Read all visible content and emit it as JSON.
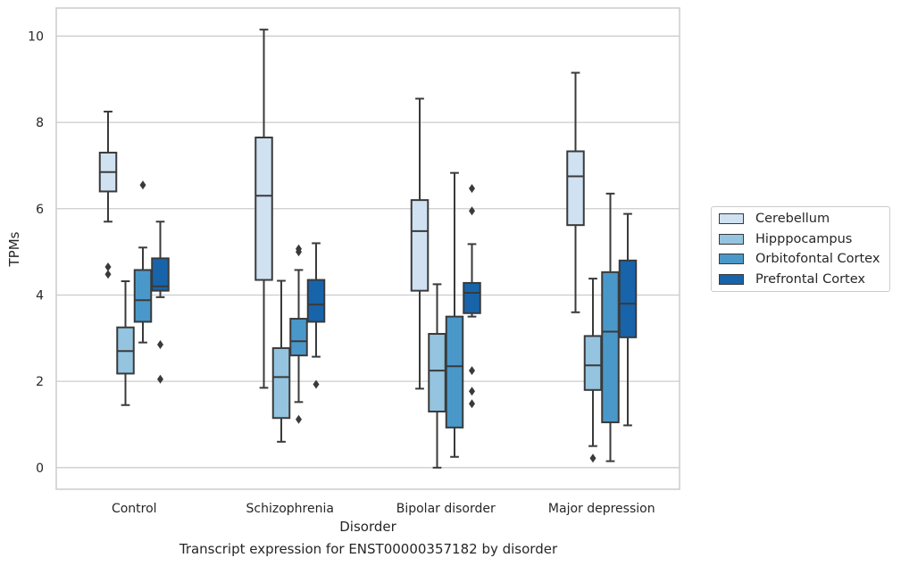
{
  "caption": "Transcript expression for ENST00000357182 by disorder",
  "colors": {
    "Cerebellum": "#d0e1f2",
    "Hipppocampus": "#94c4df",
    "Orbitofontal Cortex": "#4a98c9",
    "Prefrontal Cortex": "#1764ab",
    "grid": "#cccccc",
    "line": "#3a3a3a"
  },
  "chart_data": {
    "type": "box",
    "xlabel": "Disorder",
    "ylabel": "TPMs",
    "categories": [
      "Control",
      "Schizophrenia",
      "Bipolar disorder",
      "Major depression"
    ],
    "ylim": [
      -0.5,
      10.65
    ],
    "yticks": [
      0,
      2,
      4,
      6,
      8,
      10
    ],
    "grid": true,
    "legend_position": "right",
    "series": [
      {
        "name": "Cerebellum",
        "boxes": [
          {
            "whislo": 5.7,
            "q1": 6.4,
            "med": 6.85,
            "q3": 7.3,
            "whishi": 8.25,
            "fliers": [
              4.65,
              4.48
            ]
          },
          {
            "whislo": 1.85,
            "q1": 4.35,
            "med": 6.3,
            "q3": 7.65,
            "whishi": 10.15,
            "fliers": []
          },
          {
            "whislo": 1.83,
            "q1": 4.1,
            "med": 5.48,
            "q3": 6.2,
            "whishi": 8.55,
            "fliers": []
          },
          {
            "whislo": 3.6,
            "q1": 5.62,
            "med": 6.75,
            "q3": 7.33,
            "whishi": 9.15,
            "fliers": []
          }
        ]
      },
      {
        "name": "Hipppocampus",
        "boxes": [
          {
            "whislo": 1.45,
            "q1": 2.18,
            "med": 2.7,
            "q3": 3.25,
            "whishi": 4.32,
            "fliers": []
          },
          {
            "whislo": 0.6,
            "q1": 1.15,
            "med": 2.1,
            "q3": 2.77,
            "whishi": 4.33,
            "fliers": []
          },
          {
            "whislo": 0.0,
            "q1": 1.3,
            "med": 2.25,
            "q3": 3.1,
            "whishi": 4.25,
            "fliers": []
          },
          {
            "whislo": 0.5,
            "q1": 1.8,
            "med": 2.37,
            "q3": 3.05,
            "whishi": 4.38,
            "fliers": [
              0.22
            ]
          }
        ]
      },
      {
        "name": "Orbitofontal Cortex",
        "boxes": [
          {
            "whislo": 2.9,
            "q1": 3.38,
            "med": 3.88,
            "q3": 4.58,
            "whishi": 5.1,
            "fliers": [
              6.55
            ]
          },
          {
            "whislo": 1.52,
            "q1": 2.6,
            "med": 2.93,
            "q3": 3.45,
            "whishi": 4.58,
            "fliers": [
              5.07,
              5.0,
              1.12
            ]
          },
          {
            "whislo": 0.25,
            "q1": 0.93,
            "med": 2.35,
            "q3": 3.5,
            "whishi": 6.83,
            "fliers": []
          },
          {
            "whislo": 0.15,
            "q1": 1.05,
            "med": 3.15,
            "q3": 4.53,
            "whishi": 6.35,
            "fliers": []
          }
        ]
      },
      {
        "name": "Prefrontal Cortex",
        "boxes": [
          {
            "whislo": 3.95,
            "q1": 4.1,
            "med": 4.2,
            "q3": 4.85,
            "whishi": 5.7,
            "fliers": [
              2.85,
              2.05
            ]
          },
          {
            "whislo": 2.57,
            "q1": 3.38,
            "med": 3.78,
            "q3": 4.35,
            "whishi": 5.2,
            "fliers": [
              1.93
            ]
          },
          {
            "whislo": 3.5,
            "q1": 3.58,
            "med": 4.05,
            "q3": 4.28,
            "whishi": 5.18,
            "fliers": [
              6.47,
              5.95,
              2.25,
              1.77,
              1.48
            ]
          },
          {
            "whislo": 0.98,
            "q1": 3.02,
            "med": 3.8,
            "q3": 4.8,
            "whishi": 5.88,
            "fliers": []
          }
        ]
      }
    ]
  }
}
